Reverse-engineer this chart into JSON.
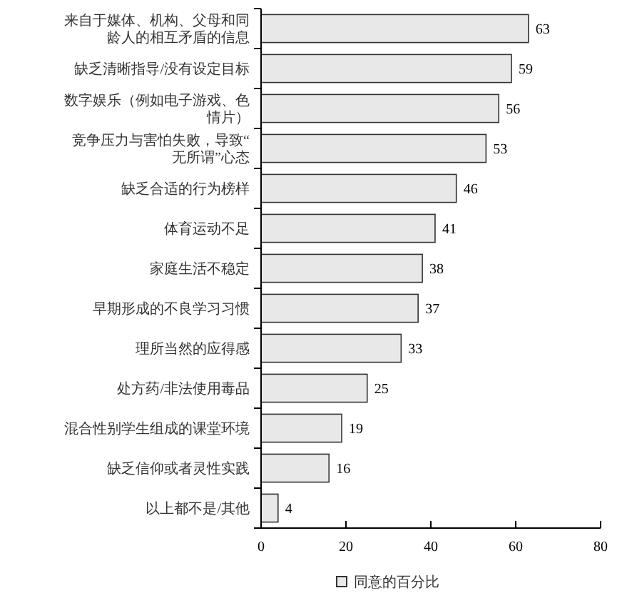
{
  "chart_data": {
    "type": "bar",
    "orientation": "horizontal",
    "categories": [
      "来自于媒体、机构、父母和同龄人的相互矛盾的信息",
      "缺乏清晰指导/没有设定目标",
      "数字娱乐（例如电子游戏、色情片）",
      "竞争压力与害怕失败，导致“无所谓”心态",
      "缺乏合适的行为榜样",
      "体育运动不足",
      "家庭生活不稳定",
      "早期形成的不良学习习惯",
      "理所当然的应得感",
      "处方药/非法使用毒品",
      "混合性别学生组成的课堂环境",
      "缺乏信仰或者灵性实践",
      "以上都不是/其他"
    ],
    "series": [
      {
        "name": "同意的百分比",
        "color": "#e8e8e8",
        "values": [
          63,
          59,
          56,
          53,
          46,
          41,
          38,
          37,
          33,
          25,
          19,
          16,
          4
        ]
      }
    ],
    "xlim": [
      0,
      80
    ],
    "xticks": [
      0,
      20,
      40,
      60,
      80
    ],
    "data_labels": true,
    "legend": "bottom",
    "grid": false
  }
}
